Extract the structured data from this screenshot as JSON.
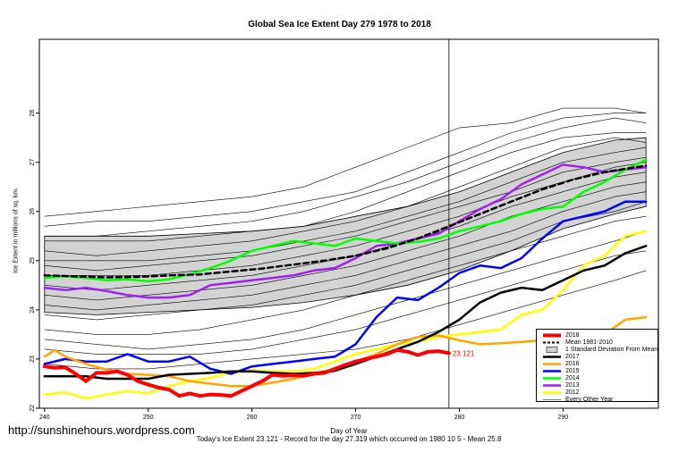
{
  "chart_data": {
    "type": "line",
    "title": "Global Sea Ice Extent Day 279 1978 to 2018",
    "xlabel": "Day of Year",
    "ylabel": "Ice Extent in millions of sq. km.",
    "xlim": [
      239.5,
      299.2
    ],
    "ylim": [
      22,
      29.5
    ],
    "xticks": [
      240,
      250,
      260,
      270,
      280,
      290
    ],
    "yticks": [
      22,
      23,
      24,
      25,
      26,
      27,
      28
    ],
    "current_day_line": 279,
    "legend_position": "bottom-right",
    "annotations": [
      {
        "text": "23.121",
        "x": 279,
        "y": 23.121,
        "color": "#ff0000"
      }
    ],
    "band": {
      "name": "1 Standard Deviation From Mean",
      "x": [
        240,
        245,
        250,
        255,
        260,
        265,
        270,
        275,
        280,
        285,
        290,
        295,
        298
      ],
      "upper": [
        25.5,
        25.5,
        25.5,
        25.55,
        25.6,
        25.7,
        25.9,
        26.1,
        26.4,
        26.8,
        27.2,
        27.45,
        27.5
      ],
      "lower": [
        23.95,
        23.9,
        23.95,
        24.0,
        24.05,
        24.15,
        24.3,
        24.5,
        24.8,
        25.2,
        25.65,
        25.95,
        26.1
      ]
    },
    "background_years": [
      {
        "x": [
          240,
          245,
          250,
          255,
          260,
          265,
          270,
          275,
          280,
          285,
          290,
          295,
          298
        ],
        "y": [
          25.9,
          26.0,
          26.1,
          26.2,
          26.3,
          26.5,
          26.9,
          27.3,
          27.7,
          27.8,
          28.1,
          28.1,
          28.0
        ]
      },
      {
        "x": [
          240,
          245,
          250,
          255,
          260,
          265,
          270,
          275,
          280,
          285,
          290,
          295,
          298
        ],
        "y": [
          25.7,
          25.8,
          25.8,
          25.9,
          26.0,
          26.2,
          26.4,
          26.8,
          27.2,
          27.6,
          27.9,
          28.0,
          28.0
        ]
      },
      {
        "x": [
          240,
          245,
          250,
          255,
          260,
          265,
          270,
          275,
          280,
          285,
          290,
          295,
          298
        ],
        "y": [
          25.5,
          25.5,
          25.6,
          25.7,
          25.8,
          26.0,
          26.3,
          26.6,
          27.0,
          27.4,
          27.7,
          27.9,
          27.8
        ]
      },
      {
        "x": [
          240,
          245,
          250,
          255,
          260,
          265,
          270,
          275,
          280,
          285,
          290,
          295,
          298
        ],
        "y": [
          25.4,
          25.4,
          25.4,
          25.5,
          25.6,
          25.7,
          26.0,
          26.4,
          26.8,
          27.2,
          27.5,
          27.6,
          27.6
        ]
      },
      {
        "x": [
          240,
          245,
          250,
          255,
          260,
          265,
          270,
          275,
          280,
          285,
          290,
          295,
          298
        ],
        "y": [
          25.2,
          25.1,
          25.2,
          25.3,
          25.4,
          25.6,
          25.8,
          26.1,
          26.5,
          26.9,
          27.3,
          27.5,
          27.4
        ]
      },
      {
        "x": [
          240,
          245,
          250,
          255,
          260,
          265,
          270,
          275,
          280,
          285,
          290,
          295,
          298
        ],
        "y": [
          25.0,
          25.0,
          25.0,
          25.1,
          25.2,
          25.4,
          25.6,
          25.9,
          26.2,
          26.6,
          27.0,
          27.2,
          27.3
        ]
      },
      {
        "x": [
          240,
          245,
          250,
          255,
          260,
          265,
          270,
          275,
          280,
          285,
          290,
          295,
          298
        ],
        "y": [
          24.9,
          24.8,
          24.9,
          25.0,
          25.1,
          25.3,
          25.5,
          25.8,
          26.1,
          26.4,
          26.8,
          27.0,
          27.1
        ]
      },
      {
        "x": [
          240,
          245,
          250,
          255,
          260,
          265,
          270,
          275,
          280,
          285,
          290,
          295,
          298
        ],
        "y": [
          24.7,
          24.7,
          24.7,
          24.8,
          24.9,
          25.1,
          25.3,
          25.6,
          25.9,
          26.3,
          26.6,
          26.9,
          27.0
        ]
      },
      {
        "x": [
          240,
          245,
          250,
          255,
          260,
          265,
          270,
          275,
          280,
          285,
          290,
          295,
          298
        ],
        "y": [
          24.5,
          24.4,
          24.5,
          24.6,
          24.7,
          24.9,
          25.1,
          25.4,
          25.7,
          26.1,
          26.4,
          26.7,
          26.8
        ]
      },
      {
        "x": [
          240,
          245,
          250,
          255,
          260,
          265,
          270,
          275,
          280,
          285,
          290,
          295,
          298
        ],
        "y": [
          24.3,
          24.2,
          24.3,
          24.4,
          24.5,
          24.7,
          24.9,
          25.2,
          25.5,
          25.9,
          26.2,
          26.5,
          26.6
        ]
      },
      {
        "x": [
          240,
          245,
          250,
          255,
          260,
          265,
          270,
          275,
          280,
          285,
          290,
          295,
          298
        ],
        "y": [
          24.1,
          24.0,
          24.1,
          24.2,
          24.3,
          24.5,
          24.7,
          25.0,
          25.3,
          25.6,
          26.0,
          26.3,
          26.4
        ]
      },
      {
        "x": [
          240,
          245,
          250,
          255,
          260,
          265,
          270,
          275,
          280,
          285,
          290,
          295,
          298
        ],
        "y": [
          23.9,
          23.8,
          23.9,
          24.0,
          24.1,
          24.3,
          24.5,
          24.8,
          25.1,
          25.4,
          25.8,
          26.0,
          26.2
        ]
      },
      {
        "x": [
          240,
          245,
          250,
          255,
          260,
          265,
          270,
          275,
          280,
          285,
          290,
          295,
          298
        ],
        "y": [
          23.6,
          23.5,
          23.5,
          23.6,
          23.8,
          24.0,
          24.3,
          24.6,
          24.9,
          25.2,
          25.5,
          25.8,
          25.9
        ]
      },
      {
        "x": [
          240,
          245,
          250,
          255,
          260,
          265,
          270,
          275,
          280,
          285,
          290,
          295,
          298
        ],
        "y": [
          23.4,
          23.3,
          23.2,
          23.3,
          23.4,
          23.6,
          23.9,
          24.2,
          24.5,
          24.8,
          25.1,
          25.4,
          25.6
        ]
      },
      {
        "x": [
          240,
          245,
          250,
          255,
          260,
          265,
          270,
          275,
          280,
          285,
          290,
          295,
          298
        ],
        "y": [
          23.2,
          23.1,
          23.1,
          23.1,
          23.2,
          23.4,
          23.6,
          23.9,
          24.2,
          24.5,
          24.8,
          25.1,
          25.2
        ]
      },
      {
        "x": [
          240,
          245,
          250,
          255,
          260,
          265,
          270,
          275,
          280,
          285,
          290,
          295,
          298
        ],
        "y": [
          22.9,
          22.8,
          22.8,
          22.9,
          23.0,
          23.1,
          23.2,
          23.4,
          23.7,
          24.0,
          24.3,
          24.6,
          24.8
        ]
      }
    ],
    "series": [
      {
        "name": "2018",
        "color": "#ff0000",
        "width": 4,
        "x": [
          240,
          241,
          242,
          243,
          244,
          245,
          246,
          247,
          248,
          249,
          250,
          251,
          252,
          253,
          254,
          255,
          256,
          257,
          258,
          259,
          260,
          261,
          262,
          263,
          264,
          265,
          266,
          267,
          268,
          269,
          270,
          271,
          272,
          273,
          274,
          275,
          276,
          277,
          278,
          279
        ],
        "y": [
          22.85,
          22.82,
          22.83,
          22.7,
          22.55,
          22.72,
          22.72,
          22.75,
          22.68,
          22.55,
          22.48,
          22.42,
          22.38,
          22.25,
          22.3,
          22.25,
          22.28,
          22.27,
          22.25,
          22.35,
          22.45,
          22.55,
          22.68,
          22.66,
          22.67,
          22.66,
          22.7,
          22.72,
          22.8,
          22.88,
          22.95,
          23.0,
          23.05,
          23.1,
          23.18,
          23.15,
          23.08,
          23.15,
          23.16,
          23.121
        ]
      },
      {
        "name": "Mean 1981-2010",
        "color": "#000000",
        "width": 2.5,
        "dash": "6,4",
        "x": [
          240,
          243,
          246,
          249,
          252,
          255,
          258,
          261,
          264,
          267,
          270,
          273,
          276,
          279,
          282,
          285,
          288,
          291,
          294,
          297,
          298
        ],
        "y": [
          24.7,
          24.68,
          24.66,
          24.67,
          24.7,
          24.72,
          24.78,
          24.84,
          24.92,
          25.0,
          25.1,
          25.25,
          25.45,
          25.7,
          25.95,
          26.2,
          26.45,
          26.65,
          26.8,
          26.9,
          26.93
        ]
      },
      {
        "name": "2017",
        "color": "#000000",
        "width": 2.5,
        "x": [
          240,
          242,
          244,
          246,
          248,
          250,
          252,
          254,
          256,
          258,
          260,
          262,
          264,
          266,
          268,
          270,
          272,
          274,
          276,
          278,
          280,
          282,
          284,
          286,
          288,
          290,
          292,
          294,
          296,
          298
        ],
        "y": [
          22.65,
          22.65,
          22.65,
          22.6,
          22.6,
          22.6,
          22.68,
          22.7,
          22.72,
          22.75,
          22.75,
          22.72,
          22.7,
          22.72,
          22.76,
          22.9,
          23.05,
          23.2,
          23.35,
          23.55,
          23.8,
          24.15,
          24.35,
          24.45,
          24.4,
          24.6,
          24.8,
          24.9,
          25.15,
          25.3
        ]
      },
      {
        "name": "2016",
        "color": "#ffa500",
        "width": 2.5,
        "x": [
          240,
          241,
          242,
          244,
          246,
          248,
          250,
          252,
          254,
          256,
          258,
          260,
          262,
          264,
          266,
          268,
          270,
          272,
          274,
          276,
          278,
          280,
          282,
          284,
          286,
          288,
          290,
          292,
          294,
          296,
          298
        ],
        "y": [
          23.05,
          23.18,
          23.05,
          22.9,
          22.78,
          22.7,
          22.68,
          22.65,
          22.55,
          22.5,
          22.45,
          22.45,
          22.52,
          22.6,
          22.7,
          22.8,
          22.95,
          23.1,
          23.3,
          23.45,
          23.48,
          23.38,
          23.3,
          23.32,
          23.35,
          23.38,
          23.5,
          23.3,
          23.5,
          23.8,
          23.85
        ]
      },
      {
        "name": "2015",
        "color": "#0000ff",
        "width": 2.5,
        "x": [
          240,
          242,
          244,
          246,
          248,
          250,
          252,
          254,
          256,
          258,
          260,
          262,
          264,
          266,
          268,
          270,
          272,
          274,
          276,
          278,
          280,
          282,
          284,
          286,
          288,
          290,
          292,
          294,
          296,
          298
        ],
        "y": [
          22.9,
          23.0,
          22.95,
          22.95,
          23.1,
          22.95,
          22.95,
          23.05,
          22.8,
          22.7,
          22.85,
          22.9,
          22.95,
          23.0,
          23.05,
          23.3,
          23.85,
          24.25,
          24.2,
          24.45,
          24.75,
          24.9,
          24.85,
          25.05,
          25.45,
          25.8,
          25.9,
          26.0,
          26.2,
          26.2
        ]
      },
      {
        "name": "2014",
        "color": "#00ff00",
        "width": 2.5,
        "x": [
          240,
          242,
          244,
          246,
          248,
          250,
          252,
          254,
          256,
          258,
          260,
          262,
          264,
          266,
          268,
          270,
          272,
          274,
          276,
          278,
          280,
          282,
          284,
          286,
          288,
          290,
          292,
          294,
          296,
          298
        ],
        "y": [
          24.65,
          24.68,
          24.65,
          24.6,
          24.62,
          24.58,
          24.62,
          24.72,
          24.85,
          25.0,
          25.2,
          25.3,
          25.4,
          25.35,
          25.3,
          25.45,
          25.4,
          25.35,
          25.38,
          25.45,
          25.6,
          25.7,
          25.8,
          25.95,
          26.05,
          26.1,
          26.4,
          26.6,
          26.85,
          27.05
        ]
      },
      {
        "name": "2013",
        "color": "#a020f0",
        "width": 2.5,
        "x": [
          240,
          242,
          244,
          246,
          248,
          250,
          252,
          254,
          256,
          258,
          260,
          262,
          264,
          266,
          268,
          270,
          272,
          274,
          276,
          278,
          280,
          282,
          284,
          286,
          288,
          290,
          292,
          294,
          296,
          298
        ],
        "y": [
          24.45,
          24.4,
          24.45,
          24.38,
          24.3,
          24.25,
          24.25,
          24.3,
          24.5,
          24.55,
          24.6,
          24.65,
          24.7,
          24.8,
          24.85,
          25.05,
          25.3,
          25.35,
          25.45,
          25.55,
          25.8,
          26.05,
          26.25,
          26.55,
          26.75,
          26.95,
          26.9,
          26.8,
          26.85,
          26.9
        ]
      },
      {
        "name": "2012",
        "color": "#ffff00",
        "width": 2.5,
        "x": [
          240,
          242,
          244,
          246,
          248,
          250,
          252,
          254,
          256,
          258,
          260,
          262,
          264,
          266,
          268,
          270,
          272,
          274,
          276,
          278,
          280,
          282,
          284,
          286,
          288,
          290,
          292,
          294,
          296,
          298
        ],
        "y": [
          22.28,
          22.32,
          22.2,
          22.28,
          22.35,
          22.3,
          22.45,
          22.55,
          22.62,
          22.72,
          22.78,
          22.75,
          22.75,
          22.8,
          22.95,
          23.1,
          23.2,
          23.3,
          23.35,
          23.45,
          23.5,
          23.55,
          23.6,
          23.9,
          24.0,
          24.4,
          24.9,
          25.1,
          25.5,
          25.6
        ]
      }
    ]
  },
  "legend": {
    "items": [
      {
        "label": "2018",
        "type": "line",
        "color": "#ff0000",
        "width": 4
      },
      {
        "label": "Mean 1981-2010",
        "type": "dash",
        "color": "#000000",
        "width": 2
      },
      {
        "label": "1 Standard Deviation From Mean",
        "type": "box",
        "color": "#d3d3d3"
      },
      {
        "label": "2017",
        "type": "line",
        "color": "#000000",
        "width": 2.5
      },
      {
        "label": "2016",
        "type": "line",
        "color": "#ffa500",
        "width": 2.5
      },
      {
        "label": "2015",
        "type": "line",
        "color": "#0000ff",
        "width": 2.5
      },
      {
        "label": "2014",
        "type": "line",
        "color": "#00ff00",
        "width": 2.5
      },
      {
        "label": "2013",
        "type": "line",
        "color": "#a020f0",
        "width": 2.5
      },
      {
        "label": "2012",
        "type": "line",
        "color": "#ffff00",
        "width": 2.5
      },
      {
        "label": "Every Other Year",
        "type": "line",
        "color": "#000000",
        "width": 0.6
      }
    ]
  },
  "footer": "Today's Ice Extent  23.121  - Record for the day  27.319 which occurred on 1980 10 5  - Mean  25.8",
  "website": "http://sunshinehours.wordpress.com"
}
